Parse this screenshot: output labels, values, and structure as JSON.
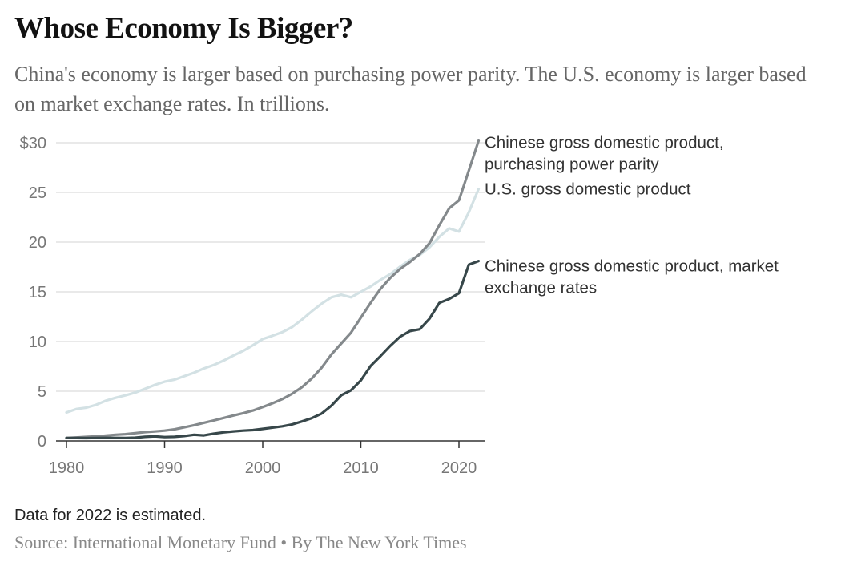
{
  "header": {
    "title": "Whose Economy Is Bigger?",
    "subtitle": "China's economy is larger based on purchasing power parity. The U.S. economy is larger based on market exchange rates. In trillions."
  },
  "footer": {
    "note": "Data for 2022 is estimated.",
    "source": "Source: International Monetary Fund • By The New York Times"
  },
  "chart_data": {
    "type": "line",
    "title": "Whose Economy Is Bigger?",
    "xlabel": "",
    "ylabel": "In trillions",
    "xlim": [
      1980,
      2022
    ],
    "ylim": [
      0,
      30
    ],
    "grid": true,
    "legend": "direct-labels-right",
    "y_ticks": [
      {
        "value": 0,
        "label": "0"
      },
      {
        "value": 5,
        "label": "5"
      },
      {
        "value": 10,
        "label": "10"
      },
      {
        "value": 15,
        "label": "15"
      },
      {
        "value": 20,
        "label": "20"
      },
      {
        "value": 25,
        "label": "25"
      },
      {
        "value": 30,
        "label": "$30"
      }
    ],
    "x_ticks": [
      {
        "value": 1980,
        "label": "1980"
      },
      {
        "value": 1990,
        "label": "1990"
      },
      {
        "value": 2000,
        "label": "2000"
      },
      {
        "value": 2010,
        "label": "2010"
      },
      {
        "value": 2020,
        "label": "2020"
      }
    ],
    "x": [
      1980,
      1981,
      1982,
      1983,
      1984,
      1985,
      1986,
      1987,
      1988,
      1989,
      1990,
      1991,
      1992,
      1993,
      1994,
      1995,
      1996,
      1997,
      1998,
      1999,
      2000,
      2001,
      2002,
      2003,
      2004,
      2005,
      2006,
      2007,
      2008,
      2009,
      2010,
      2011,
      2012,
      2013,
      2014,
      2015,
      2016,
      2017,
      2018,
      2019,
      2020,
      2021,
      2022
    ],
    "series": [
      {
        "name": "U.S. gross domestic product",
        "label_lines": [
          "U.S. gross domestic product"
        ],
        "color": "#d3e1e4",
        "values": [
          2.86,
          3.21,
          3.34,
          3.63,
          4.04,
          4.34,
          4.58,
          4.86,
          5.24,
          5.64,
          5.96,
          6.16,
          6.52,
          6.86,
          7.29,
          7.64,
          8.07,
          8.58,
          9.06,
          9.63,
          10.25,
          10.58,
          10.94,
          11.46,
          12.21,
          13.04,
          13.81,
          14.45,
          14.71,
          14.45,
          15.0,
          15.54,
          16.2,
          16.78,
          17.53,
          18.21,
          18.7,
          19.48,
          20.53,
          21.38,
          21.06,
          23.0,
          25.35
        ]
      },
      {
        "name": "Chinese gross domestic product, purchasing power parity",
        "label_lines": [
          "Chinese gross domestic product,",
          "purchasing power parity"
        ],
        "color": "#84898c",
        "values": [
          0.3,
          0.35,
          0.4,
          0.45,
          0.53,
          0.62,
          0.68,
          0.78,
          0.89,
          0.95,
          1.03,
          1.16,
          1.36,
          1.58,
          1.82,
          2.06,
          2.31,
          2.56,
          2.79,
          3.06,
          3.4,
          3.79,
          4.21,
          4.75,
          5.41,
          6.28,
          7.36,
          8.7,
          9.8,
          10.9,
          12.4,
          13.9,
          15.3,
          16.4,
          17.3,
          18.0,
          18.8,
          19.9,
          21.7,
          23.4,
          24.2,
          27.2,
          30.2
        ]
      },
      {
        "name": "Chinese gross domestic product, market exchange rates",
        "label_lines": [
          "Chinese gross domestic product, market",
          "exchange rates"
        ],
        "color": "#37474a",
        "values": [
          0.3,
          0.29,
          0.28,
          0.3,
          0.31,
          0.31,
          0.3,
          0.32,
          0.41,
          0.46,
          0.39,
          0.41,
          0.49,
          0.62,
          0.56,
          0.73,
          0.86,
          0.96,
          1.03,
          1.09,
          1.21,
          1.34,
          1.47,
          1.66,
          1.96,
          2.29,
          2.75,
          3.55,
          4.59,
          5.1,
          6.09,
          7.55,
          8.53,
          9.57,
          10.48,
          11.06,
          11.23,
          12.31,
          13.89,
          14.28,
          14.86,
          17.73,
          18.1
        ]
      }
    ],
    "annotations": [
      "Data for 2022 is estimated."
    ]
  }
}
